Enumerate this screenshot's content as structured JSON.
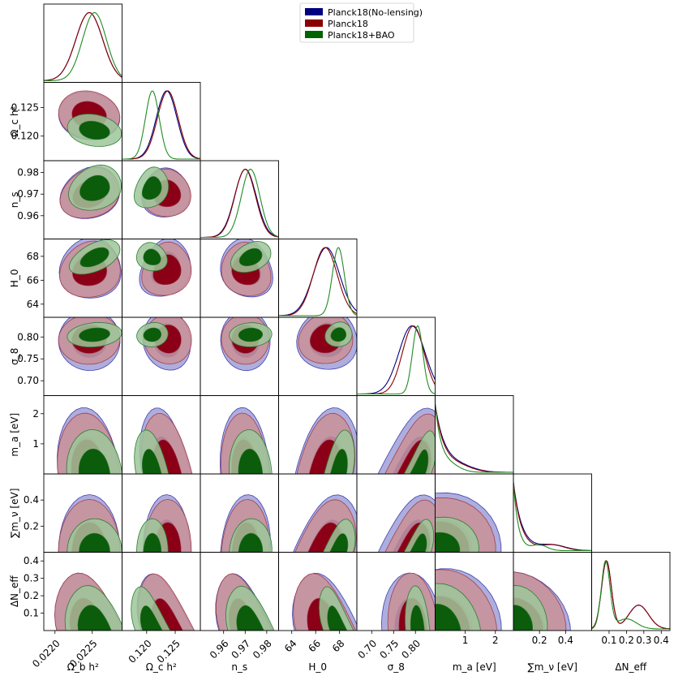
{
  "chart_data": {
    "type": "triangle",
    "legend": {
      "placement": "top-center",
      "entries": [
        {
          "name": "Planck18(No-lensing)",
          "color": "#000080"
        },
        {
          "name": "Planck18",
          "color": "#8b0000"
        },
        {
          "name": "Planck18+BAO",
          "color": "#006400"
        }
      ]
    },
    "parameters": [
      {
        "label": "Ω_b h²",
        "range": [
          0.02185,
          0.0229
        ],
        "ticks": [
          "0.0220",
          "0.0225"
        ],
        "tickvals": [
          0.022,
          0.0225
        ]
      },
      {
        "label": "Ω_c h²",
        "range": [
          0.1157,
          0.1294
        ],
        "ticks": [
          "0.120",
          "0.125"
        ],
        "tickvals": [
          0.12,
          0.125
        ]
      },
      {
        "label": "n_s",
        "range": [
          0.9492,
          0.9855
        ],
        "ticks": [
          "0.96",
          "0.97",
          "0.98"
        ],
        "tickvals": [
          0.96,
          0.97,
          0.98
        ]
      },
      {
        "label": "H_0",
        "range": [
          62.9,
          69.45
        ],
        "ticks": [
          "64",
          "66",
          "68"
        ],
        "tickvals": [
          64,
          66,
          68
        ]
      },
      {
        "label": "σ_8",
        "range": [
          0.666,
          0.845
        ],
        "ticks": [
          "0.70",
          "0.75",
          "0.80"
        ],
        "tickvals": [
          0.7,
          0.75,
          0.8
        ]
      },
      {
        "label": "m_a [eV]",
        "range": [
          0.0,
          2.6
        ],
        "ticks": [
          "1",
          "2"
        ],
        "tickvals": [
          1,
          2
        ]
      },
      {
        "label": "∑m_ν [eV]",
        "range": [
          0.0,
          0.6
        ],
        "ticks": [
          "0.2",
          "0.4"
        ],
        "tickvals": [
          0.2,
          0.4
        ]
      },
      {
        "label": "ΔN_eff",
        "range": [
          0.0,
          0.45
        ],
        "ticks": [
          "0.1",
          "0.2",
          "0.3",
          "0.4"
        ],
        "tickvals": [
          0.1,
          0.2,
          0.3,
          0.4
        ]
      }
    ],
    "y_ticks": {
      "Ω_c h²": [
        "0.120",
        "0.125"
      ],
      "n_s": [
        "0.96",
        "0.97",
        "0.98"
      ],
      "H_0": [
        "64",
        "66",
        "68"
      ],
      "σ_8": [
        "0.70",
        "0.75",
        "0.80"
      ],
      "m_a [eV]": [
        "1",
        "2"
      ],
      "∑m_ν [eV]": [
        "0.2",
        "0.4"
      ],
      "ΔN_eff": [
        "0.1",
        "0.2",
        "0.3",
        "0.4"
      ]
    },
    "series_means": {
      "Planck18(No-lensing)": [
        0.02246,
        0.1235,
        0.9701,
        66.9,
        0.792,
        0.3,
        0.12,
        0.12
      ],
      "Planck18": [
        0.02246,
        0.1237,
        0.97,
        66.8,
        0.795,
        0.3,
        0.12,
        0.12
      ],
      "Planck18+BAO": [
        0.02253,
        0.121,
        0.9725,
        67.9,
        0.805,
        0.2,
        0.08,
        0.09
      ]
    },
    "series_sigmas": {
      "Planck18(No-lensing)": [
        0.00018,
        0.0018,
        0.005,
        1.1,
        0.03,
        0.6,
        0.12,
        0.09
      ],
      "Planck18": [
        0.00018,
        0.0018,
        0.0048,
        1.0,
        0.025,
        0.55,
        0.11,
        0.09
      ],
      "Planck18+BAO": [
        0.00016,
        0.0012,
        0.0043,
        0.5,
        0.012,
        0.4,
        0.07,
        0.07
      ]
    }
  }
}
